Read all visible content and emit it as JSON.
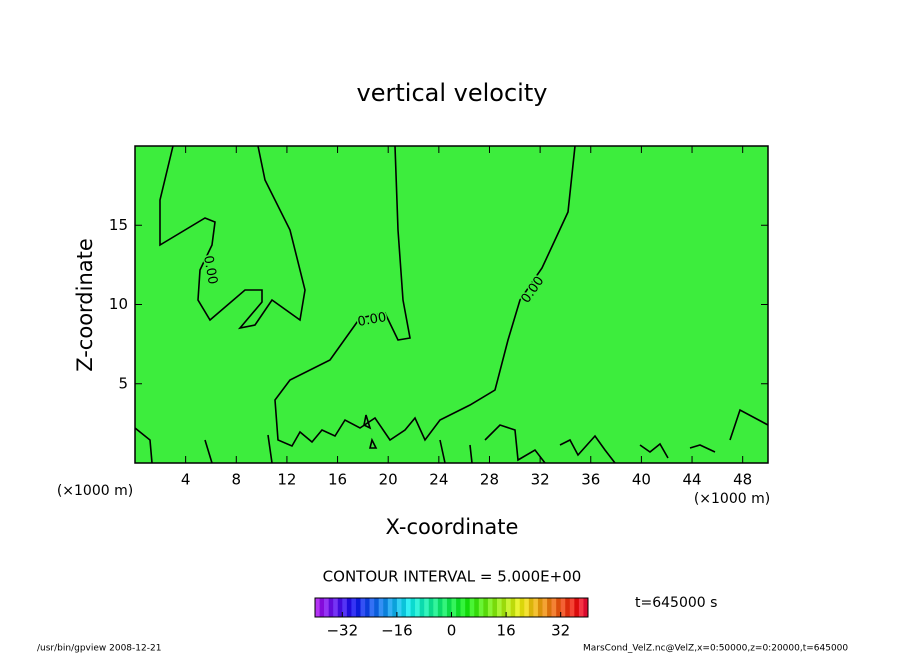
{
  "chart_data": {
    "type": "contour",
    "title": "vertical velocity",
    "x_label": "X-coordinate",
    "y_label": "Z-coordinate",
    "x_unit": "(×1000 m)",
    "y_unit": "(×1000 m)",
    "xlim": [
      0,
      50
    ],
    "xticks": [
      4,
      8,
      12,
      16,
      20,
      24,
      28,
      32,
      36,
      40,
      44,
      48
    ],
    "ylim": [
      0,
      20
    ],
    "yticks": [
      5,
      10,
      15
    ],
    "fill_color": "#3ded3d",
    "contour_level": {
      "value": 0,
      "label": "0.00"
    },
    "contour_interval": {
      "value": 5,
      "label": "CONTOUR INTERVAL = 5.000E+00"
    },
    "colorbar": {
      "clim": [
        -40,
        40
      ],
      "ticks": [
        {
          "value": -32,
          "label": "−32"
        },
        {
          "value": -16,
          "label": "−16"
        },
        0,
        16,
        32
      ]
    },
    "time_label": "t=645000 s",
    "footer_left": "/usr/bin/gpview   2008-12-21",
    "footer_right": "MarsCond_VelZ.nc@VelZ,x=0:50000,z=0:20000,t=645000"
  }
}
